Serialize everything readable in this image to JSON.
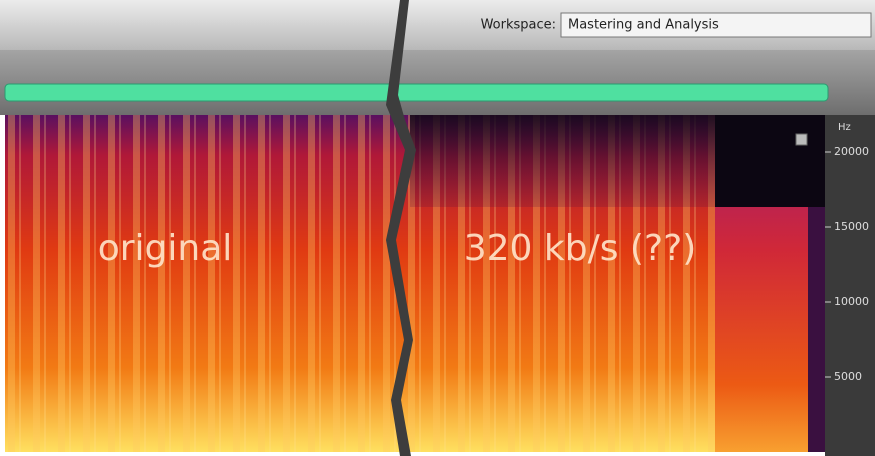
{
  "toolbar": {
    "workspace_label": "Workspace:",
    "workspace_value": "Mastering and Analysis"
  },
  "spectrogram": {
    "labels": [
      "original",
      "320 kb/s (??)"
    ]
  },
  "frequency_axis": {
    "unit": "Hz",
    "ticks": [
      20000,
      15000,
      10000,
      5000
    ]
  }
}
